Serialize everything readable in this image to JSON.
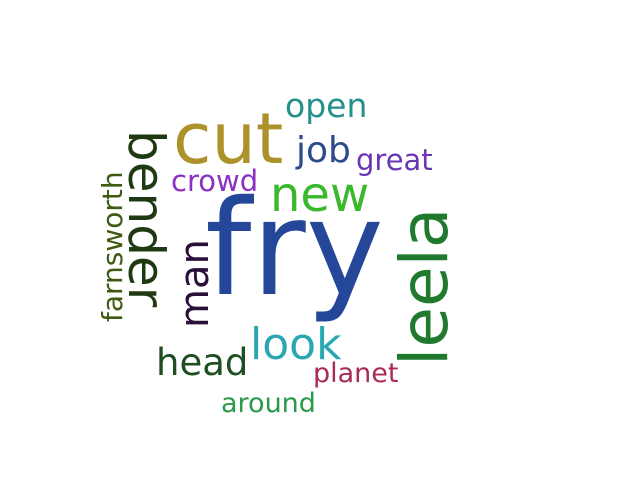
{
  "words": [
    {
      "text": "fry",
      "color": "#24479a"
    },
    {
      "text": "cut",
      "color": "#ad912a"
    },
    {
      "text": "leela",
      "color": "#1f7a2e"
    },
    {
      "text": "bender",
      "color": "#1f3a12"
    },
    {
      "text": "new",
      "color": "#3ab82e"
    },
    {
      "text": "look",
      "color": "#2aa8b2"
    },
    {
      "text": "man",
      "color": "#2a0f3a"
    },
    {
      "text": "head",
      "color": "#1e4e22"
    },
    {
      "text": "job",
      "color": "#2b4b8d"
    },
    {
      "text": "open",
      "color": "#22918a"
    },
    {
      "text": "great",
      "color": "#6a36b4"
    },
    {
      "text": "crowd",
      "color": "#8a30c4"
    },
    {
      "text": "farnsworth",
      "color": "#3f5a12"
    },
    {
      "text": "planet",
      "color": "#aa2a5a"
    },
    {
      "text": "around",
      "color": "#2a9a4a"
    }
  ]
}
